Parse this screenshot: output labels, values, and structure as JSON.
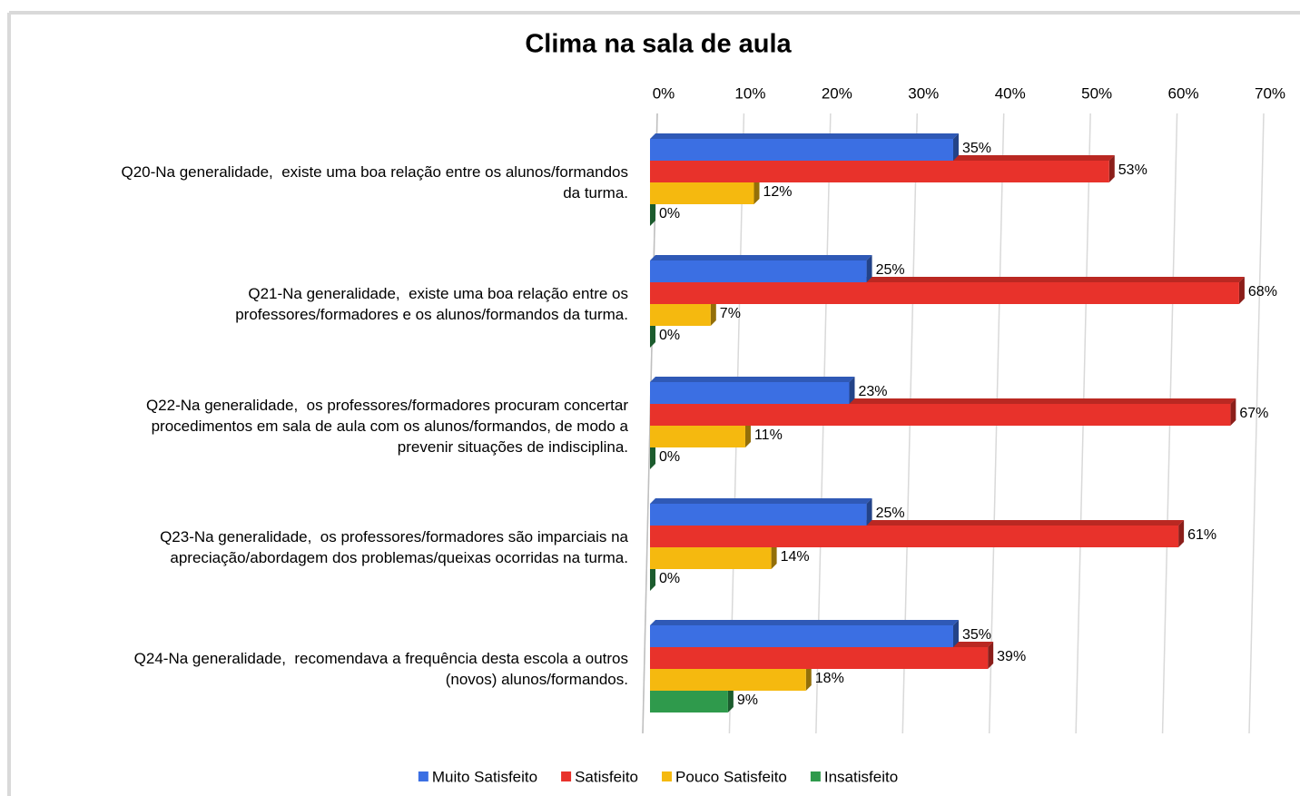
{
  "chart_data": {
    "type": "bar",
    "orientation": "horizontal",
    "title": "Clima na sala de aula",
    "categories": [
      "Q20-Na generalidade,  existe uma boa relação entre os alunos/formandos\nda turma.",
      "Q21-Na generalidade,  existe uma boa relação entre os\nprofessores/formadores e os alunos/formandos da turma.",
      "Q22-Na generalidade,  os professores/formadores procuram concertar\nprocedimentos em sala de aula com os alunos/formandos, de modo a\nprevenir situações de indisciplina.",
      "Q23-Na generalidade,  os professores/formadores são imparciais na\napreciação/abordagem dos problemas/queixas ocorridas na turma.",
      "Q24-Na generalidade,  recomendava a frequência desta escola a outros\n(novos) alunos/formandos."
    ],
    "series": [
      {
        "name": "Muito Satisfeito",
        "color": "#3b6fe3",
        "values": [
          35,
          25,
          23,
          25,
          35
        ],
        "value_labels": [
          "35%",
          "25%",
          "23%",
          "25%",
          "35%"
        ]
      },
      {
        "name": "Satisfeito",
        "color": "#e8322b",
        "values": [
          53,
          68,
          67,
          61,
          39
        ],
        "value_labels": [
          "53%",
          "68%",
          "67%",
          "61%",
          "39%"
        ]
      },
      {
        "name": "Pouco Satisfeito",
        "color": "#f5b90f",
        "values": [
          12,
          7,
          11,
          14,
          18
        ],
        "value_labels": [
          "12%",
          "7%",
          "11%",
          "14%",
          "18%"
        ]
      },
      {
        "name": "Insatisfeito",
        "color": "#2f9a4c",
        "values": [
          0,
          0,
          0,
          0,
          9
        ],
        "value_labels": [
          "0%",
          "0%",
          "0%",
          "0%",
          "9%"
        ]
      }
    ],
    "xlim": [
      0,
      70
    ],
    "xticks": [
      {
        "value": 0,
        "label": "0%"
      },
      {
        "value": 10,
        "label": "10%"
      },
      {
        "value": 20,
        "label": "20%"
      },
      {
        "value": 30,
        "label": "30%"
      },
      {
        "value": 40,
        "label": "40%"
      },
      {
        "value": 50,
        "label": "50%"
      },
      {
        "value": 60,
        "label": "60%"
      },
      {
        "value": 70,
        "label": "70%"
      }
    ],
    "grid": true,
    "legend": "bottom"
  }
}
